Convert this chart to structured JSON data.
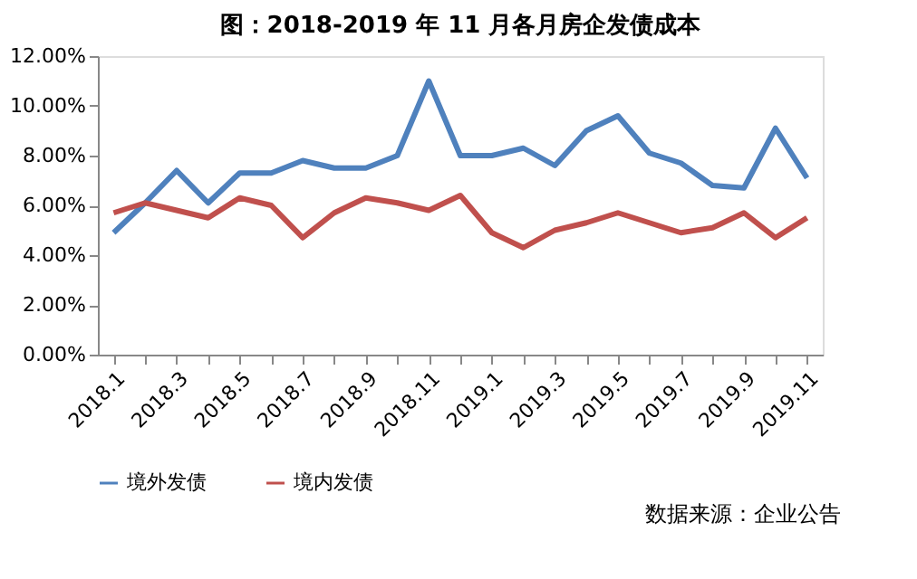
{
  "chart_data": {
    "type": "line",
    "title": "图：2018-2019 年 11 月各月房企发债成本",
    "categories": [
      "2018.1",
      null,
      "2018.3",
      null,
      "2018.5",
      null,
      "2018.7",
      null,
      "2018.9",
      null,
      "2018.11",
      null,
      "2019.1",
      null,
      "2019.3",
      null,
      "2019.5",
      null,
      "2019.7",
      null,
      "2019.9",
      null,
      "2019.11"
    ],
    "series": [
      {
        "name": "境外发债",
        "color": "#4f81bd",
        "values": [
          4.9,
          6.1,
          7.4,
          6.1,
          7.3,
          7.3,
          7.8,
          7.5,
          7.5,
          8.0,
          11.0,
          8.0,
          8.0,
          8.3,
          7.6,
          9.0,
          9.6,
          8.1,
          7.7,
          6.8,
          6.7,
          9.1,
          7.1
        ]
      },
      {
        "name": "境内发债",
        "color": "#c0504d",
        "values": [
          5.7,
          6.1,
          5.8,
          5.5,
          6.3,
          6.0,
          4.7,
          5.7,
          6.3,
          6.1,
          5.8,
          6.4,
          4.9,
          4.3,
          5.0,
          5.3,
          5.7,
          5.3,
          4.9,
          5.1,
          5.7,
          4.7,
          5.5
        ]
      }
    ],
    "ylim": [
      0,
      12
    ],
    "yticks": [
      {
        "value": 0,
        "label": "0.00%"
      },
      {
        "value": 2,
        "label": "2.00%"
      },
      {
        "value": 4,
        "label": "4.00%"
      },
      {
        "value": 6,
        "label": "6.00%"
      },
      {
        "value": 8,
        "label": "8.00%"
      },
      {
        "value": 10,
        "label": "10.00%"
      },
      {
        "value": 12,
        "label": "12.00%"
      }
    ],
    "grid": false,
    "legend": "bottom",
    "marker": "none",
    "line_style": "solid",
    "annotations": [
      "数据来源：企业公告"
    ]
  }
}
